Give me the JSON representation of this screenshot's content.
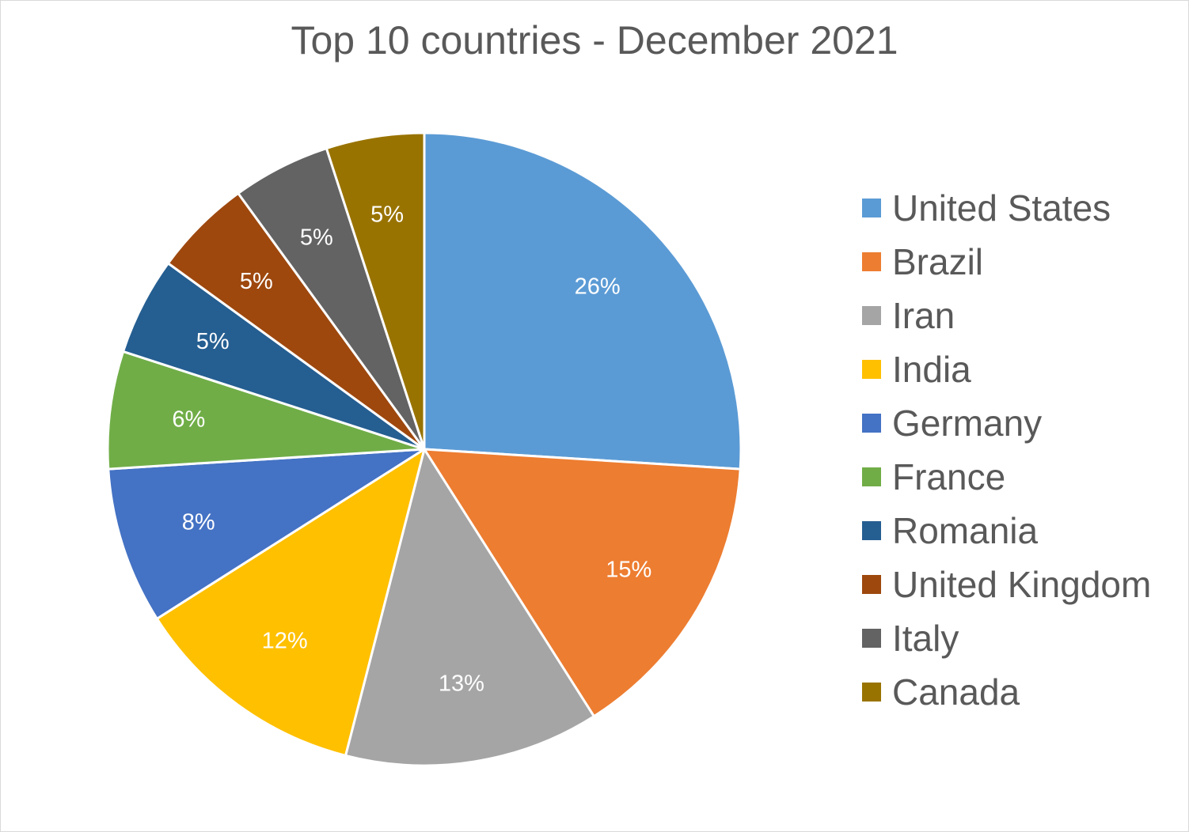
{
  "chart_data": {
    "type": "pie",
    "title": "Top 10 countries - December 2021",
    "categories": [
      "United States",
      "Brazil",
      "Iran",
      "India",
      "Germany",
      "France",
      "Romania",
      "United Kingdom",
      "Italy",
      "Canada"
    ],
    "values": [
      26,
      15,
      13,
      12,
      8,
      6,
      5,
      5,
      5,
      5
    ],
    "data_labels": [
      "26%",
      "15%",
      "13%",
      "12%",
      "8%",
      "6%",
      "5%",
      "5%",
      "5%",
      "5%"
    ],
    "colors": [
      "#5b9bd5",
      "#ed7d31",
      "#a5a5a5",
      "#ffc000",
      "#4472c4",
      "#70ad47",
      "#255e91",
      "#9e480e",
      "#636363",
      "#997300"
    ],
    "legend_position": "right",
    "start": "12 o'clock, clockwise"
  }
}
